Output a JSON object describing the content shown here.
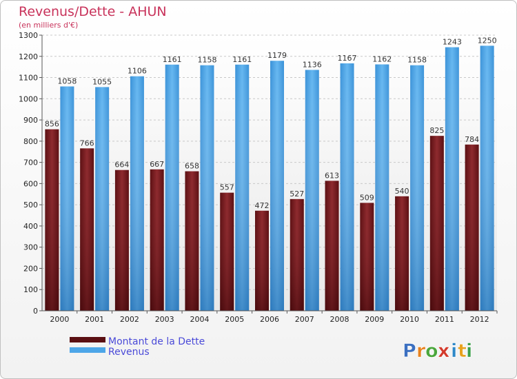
{
  "chart_data": {
    "type": "bar",
    "title": "Revenus/Dette - AHUN",
    "subtitle": "(en milliers d'€)",
    "categories": [
      "2000",
      "2001",
      "2002",
      "2003",
      "2004",
      "2005",
      "2006",
      "2007",
      "2008",
      "2009",
      "2010",
      "2011",
      "2012"
    ],
    "series": [
      {
        "name": "Montant de la Dette",
        "color": "#7a1e22",
        "values": [
          856,
          766,
          664,
          667,
          658,
          557,
          472,
          527,
          613,
          509,
          540,
          825,
          784
        ]
      },
      {
        "name": "Revenus",
        "color": "#4da6e8",
        "values": [
          1058,
          1055,
          1106,
          1161,
          1158,
          1161,
          1179,
          1136,
          1167,
          1162,
          1158,
          1243,
          1250
        ]
      }
    ],
    "ylim": [
      0,
      1300
    ],
    "yticks": [
      0,
      100,
      200,
      300,
      400,
      500,
      600,
      700,
      800,
      900,
      1000,
      1100,
      1200,
      1300
    ],
    "grid": true,
    "legend_position": "bottom-left"
  },
  "logo": {
    "letters": [
      "P",
      "r",
      "o",
      "x",
      "i",
      "t",
      "i"
    ],
    "colors": [
      "#3b6fc0",
      "#e8821e",
      "#4aa63c",
      "#d33a2c",
      "#2e88c8",
      "#e8a21e",
      "#3b9f4a"
    ]
  }
}
